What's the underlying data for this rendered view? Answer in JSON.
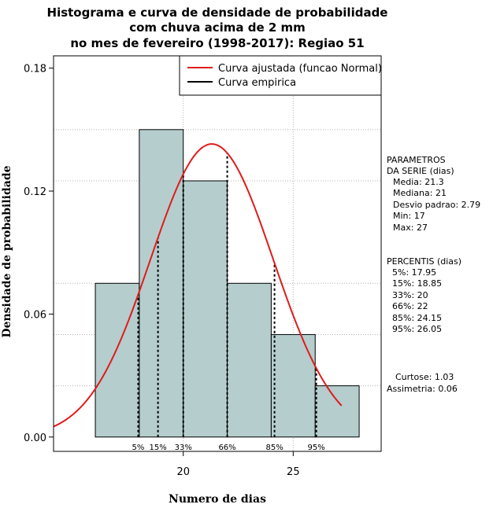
{
  "title": {
    "line1": "Histograma e curva de densidade de probabilidade",
    "line2": "com chuva acima de 2 mm",
    "line3": "no mes de fevereiro (1998-2017): Regiao 51"
  },
  "chart_data": {
    "type": "histogram",
    "xlabel": "Numero de dias",
    "ylabel": "Densidade de probabilidade",
    "xlim": [
      14.1,
      29.0
    ],
    "ylim": [
      -0.007,
      0.186
    ],
    "x_ticks": [
      20,
      25
    ],
    "y_ticks": [
      "0.00",
      "0.06",
      "0.12",
      "0.18"
    ],
    "bins": [
      {
        "from": 16,
        "to": 18,
        "density": 0.075
      },
      {
        "from": 18,
        "to": 20,
        "density": 0.15
      },
      {
        "from": 20,
        "to": 22,
        "density": 0.125
      },
      {
        "from": 22,
        "to": 24,
        "density": 0.075
      },
      {
        "from": 24,
        "to": 26,
        "density": 0.05
      },
      {
        "from": 26,
        "to": 28,
        "density": 0.025
      }
    ],
    "normal_curve": {
      "mean": 21.3,
      "sd": 2.79,
      "x_from": 14.1,
      "x_to": 27.2,
      "color": "#e01b1b"
    },
    "percentile_lines": [
      {
        "label": "5%",
        "x": 17.95
      },
      {
        "label": "15%",
        "x": 18.85
      },
      {
        "label": "33%",
        "x": 20
      },
      {
        "label": "66%",
        "x": 22
      },
      {
        "label": "85%",
        "x": 24.15
      },
      {
        "label": "95%",
        "x": 26.05
      }
    ],
    "legend": {
      "position": "top-right",
      "items": [
        {
          "label": "Curva ajustada (funcao Normal)",
          "color": "#e01b1b"
        },
        {
          "label": "Curva empirica",
          "color": "#000000"
        }
      ]
    },
    "bar_color": "#b5cdcd"
  },
  "side_panel": {
    "params_title_1": "PARAMETROS",
    "params_title_2": "DA SERIE (dias)",
    "media": "Media: 21.3",
    "mediana": "Mediana: 21",
    "desvio": "Desvio padrao: 2.79",
    "min": "Min: 17",
    "max": "Max: 27",
    "percentis_title": "PERCENTIS (dias)",
    "p5": "5%: 17.95",
    "p15": "15%: 18.85",
    "p33": "33%: 20",
    "p66": "66%: 22",
    "p85": "85%: 24.15",
    "p95": "95%: 26.05",
    "curtose": "Curtose: 1.03",
    "assimetria": "Assimetria: 0.06"
  }
}
